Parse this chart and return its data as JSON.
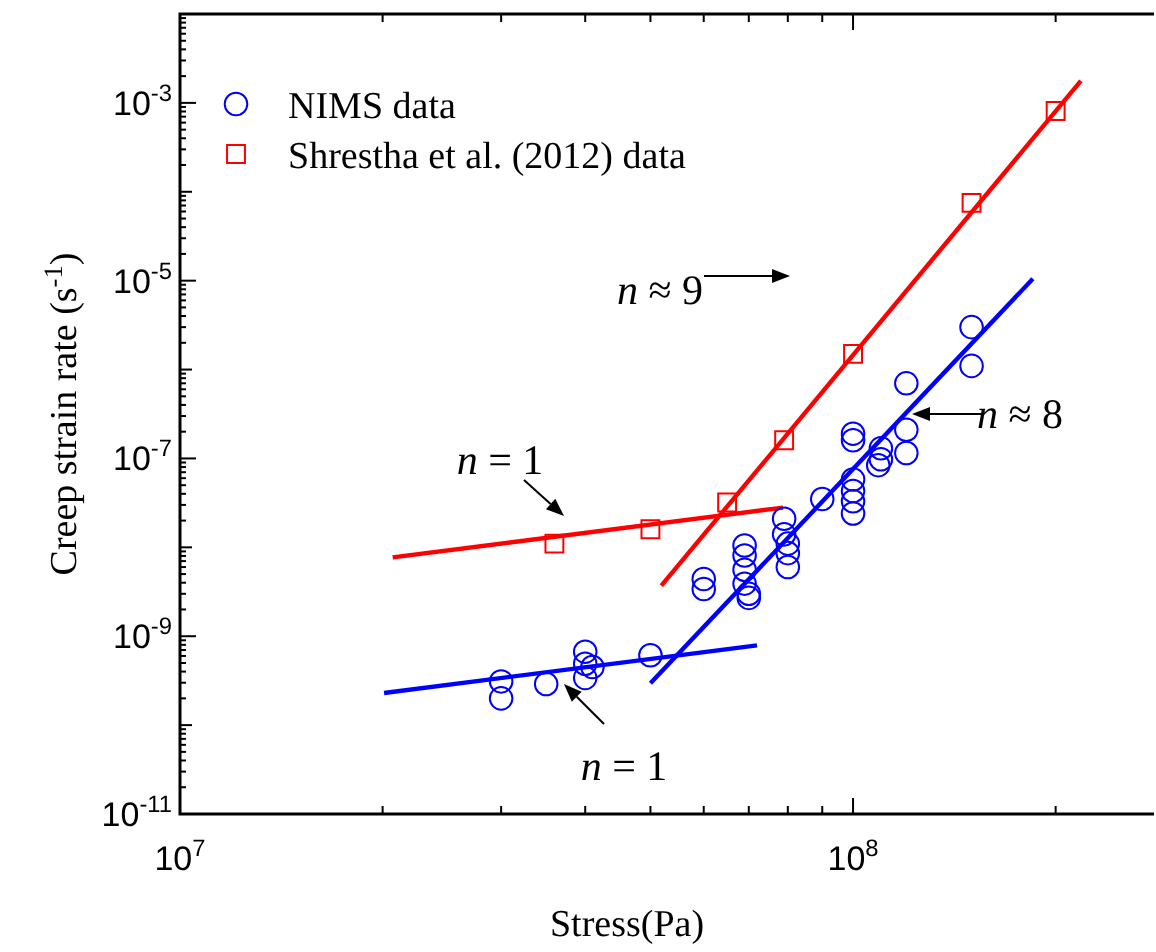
{
  "chart_data": {
    "type": "scatter",
    "xlabel": "Stress(Pa)",
    "ylabel": "Creep strain rate (s$^{-1}$)",
    "log": "xy",
    "legend": "top left",
    "grid": false,
    "xlim": [
      10000000.0,
      280000000.0
    ],
    "ylim": [
      1e-11,
      0.01
    ],
    "xticks": [
      {
        "value": 10000000.0,
        "label": "10$^{7}$"
      },
      {
        "value": 100000000.0,
        "label": "10$^{8}$"
      }
    ],
    "yticks": [
      {
        "value": 1e-11,
        "label": "10$^{-11}$"
      },
      {
        "value": 1e-10,
        "label": null
      },
      {
        "value": 1e-09,
        "label": "10$^{-9}$"
      },
      {
        "value": 1e-08,
        "label": null
      },
      {
        "value": 1e-07,
        "label": "10$^{-7}$"
      },
      {
        "value": 1e-06,
        "label": null
      },
      {
        "value": 1e-05,
        "label": "10$^{-5}$"
      },
      {
        "value": 0.0001,
        "label": null
      },
      {
        "value": 0.001,
        "label": "10$^{-3}$"
      }
    ],
    "series": [
      {
        "name": "NIMS data",
        "type": "scatter",
        "marker": "circle",
        "color": "#0000ff",
        "x": [
          30000000.0,
          30000000.0,
          35000000.0,
          40000000.0,
          40000000.0,
          40000000.0,
          41000000.0,
          50000000.0,
          60000000.0,
          60000000.0,
          69000000.0,
          69000000.0,
          69000000.0,
          69000000.0,
          70000000.0,
          70000000.0,
          79000000.0,
          79000000.0,
          80000000.0,
          80000000.0,
          80000000.0,
          90000000.0,
          100000000.0,
          100000000.0,
          100000000.0,
          100000000.0,
          100000000.0,
          100000000.0,
          109000000.0,
          110000000.0,
          110000000.0,
          120000000.0,
          120000000.0,
          120000000.0,
          150000000.0,
          150000000.0
        ],
        "values": [
          3.1e-10,
          2e-10,
          2.9e-10,
          6.7e-10,
          4.9e-10,
          3.4e-10,
          4.5e-10,
          6.1e-10,
          4.4e-09,
          3.4e-09,
          1.05e-08,
          8.1e-09,
          5.6e-09,
          3.9e-09,
          3e-09,
          2.7e-09,
          2.1e-08,
          1.4e-08,
          1.1e-08,
          8.6e-09,
          6e-09,
          3.5e-08,
          5.8e-08,
          4.3e-08,
          3.3e-08,
          2.4e-08,
          1.9e-07,
          1.6e-07,
          8.4e-08,
          1.3e-07,
          9.8e-08,
          7e-07,
          2.1e-07,
          1.15e-07,
          3e-06,
          1.1e-06
        ]
      },
      {
        "name": "Shrestha et al. (2012) data",
        "type": "scatter",
        "marker": "square",
        "color": "#ff0000",
        "x": [
          36000000.0,
          50000000.0,
          65000000.0,
          79000000.0,
          100000000.0,
          150000000.0,
          200000000.0
        ],
        "values": [
          1.1e-08,
          1.6e-08,
          3.2e-08,
          1.6e-07,
          1.5e-06,
          7.5e-05,
          0.00081
        ]
      },
      {
        "type": "line",
        "marker": "none",
        "color": "#ff0000",
        "x": [
          20700000.0,
          78700000.0
        ],
        "values": [
          7.7e-09,
          2.8e-08
        ]
      },
      {
        "type": "line",
        "marker": "none",
        "color": "#ff0000",
        "x": [
          51900000.0,
          218000000.0
        ],
        "values": [
          3.7e-09,
          0.00177
        ]
      },
      {
        "type": "line",
        "marker": "none",
        "color": "#0000ff",
        "x": [
          20100000.0,
          72000000.0
        ],
        "values": [
          2.3e-10,
          7.9e-10
        ]
      },
      {
        "type": "line",
        "marker": "none",
        "color": "#0000ff",
        "x": [
          50000000.0,
          185000000.0
        ],
        "values": [
          2.95e-10,
          1.05e-05
        ]
      }
    ],
    "annotations": [
      "n = 1",
      "n ≈ 9",
      "n ≈ 8",
      "n = 1"
    ]
  }
}
